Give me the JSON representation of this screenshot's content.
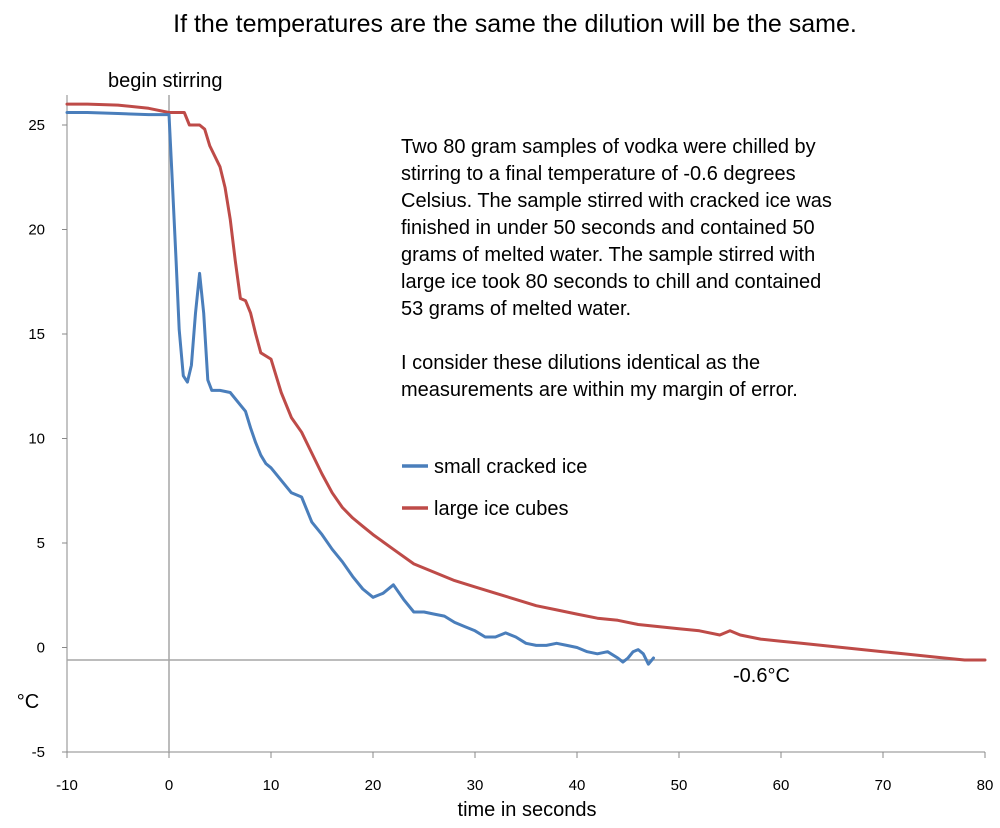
{
  "chart_data": {
    "type": "line",
    "title": "If the temperatures are the same the dilution will be the same.",
    "xlabel": "time in seconds",
    "ylabel": "°C",
    "xlim": [
      -10,
      80
    ],
    "ylim": [
      -5,
      25
    ],
    "x_ticks": [
      -10,
      0,
      10,
      20,
      30,
      40,
      50,
      60,
      70,
      80
    ],
    "y_ticks": [
      -5,
      0,
      5,
      10,
      15,
      20,
      25
    ],
    "grid": false,
    "legend_position": "center-right",
    "reference_lines": [
      {
        "axis": "x",
        "value": 0,
        "label": "begin stirring"
      },
      {
        "axis": "y",
        "value": -0.6,
        "label": "-0.6°C"
      }
    ],
    "annotation_paragraphs": [
      [
        "Two 80 gram samples of vodka were chilled by",
        "stirring to a final temperature of -0.6 degrees",
        "Celsius. The sample stirred with cracked ice was",
        "finished in under 50 seconds and contained 50",
        "grams of melted water. The sample stirred with",
        "large ice took 80 seconds to chill and contained",
        "53 grams of melted water."
      ],
      [
        "I consider these dilutions identical as the",
        "measurements are within my margin of error."
      ]
    ],
    "series": [
      {
        "name": "small cracked ice",
        "color": "#4a7ebb",
        "x": [
          -10,
          -8,
          -5,
          -2,
          0,
          0.3,
          0.7,
          1.0,
          1.4,
          1.8,
          2.2,
          2.6,
          3.0,
          3.4,
          3.8,
          4.2,
          5,
          6,
          7,
          7.5,
          8,
          8.5,
          9,
          9.5,
          10,
          11,
          12,
          13,
          14,
          15,
          16,
          17,
          18,
          19,
          20,
          21,
          22,
          23,
          24,
          25,
          26,
          27,
          28,
          29,
          30,
          31,
          32,
          33,
          34,
          35,
          36,
          37,
          38,
          39,
          40,
          41,
          42,
          43,
          44,
          44.5,
          45,
          45.5,
          46,
          46.5,
          47,
          47.5
        ],
        "values": [
          25.6,
          25.6,
          25.55,
          25.5,
          25.5,
          22.5,
          18.5,
          15.2,
          13.0,
          12.7,
          13.5,
          16.0,
          17.9,
          16.0,
          12.8,
          12.3,
          12.3,
          12.2,
          11.6,
          11.3,
          10.5,
          9.8,
          9.2,
          8.8,
          8.6,
          8.0,
          7.4,
          7.2,
          6.0,
          5.4,
          4.7,
          4.1,
          3.4,
          2.8,
          2.4,
          2.6,
          3.0,
          2.3,
          1.7,
          1.7,
          1.6,
          1.5,
          1.2,
          1.0,
          0.8,
          0.5,
          0.5,
          0.7,
          0.5,
          0.2,
          0.1,
          0.1,
          0.2,
          0.1,
          0.0,
          -0.2,
          -0.3,
          -0.2,
          -0.5,
          -0.7,
          -0.5,
          -0.2,
          -0.1,
          -0.3,
          -0.8,
          -0.5
        ]
      },
      {
        "name": "large ice cubes",
        "color": "#be4b48",
        "x": [
          -10,
          -8,
          -5,
          -2,
          0,
          1.5,
          2,
          3,
          3.5,
          4,
          5,
          5.5,
          6,
          6.5,
          7,
          7.5,
          8,
          8.5,
          9,
          10,
          11,
          12,
          13,
          14,
          15,
          16,
          17,
          18,
          19,
          20,
          22,
          24,
          26,
          28,
          30,
          32,
          34,
          36,
          38,
          40,
          42,
          44,
          46,
          48,
          50,
          52,
          54,
          55,
          56,
          58,
          60,
          62,
          64,
          66,
          68,
          70,
          72,
          74,
          76,
          78,
          80
        ],
        "values": [
          26.0,
          26.0,
          25.95,
          25.8,
          25.6,
          25.6,
          25.0,
          25.0,
          24.8,
          24.0,
          23.0,
          22.0,
          20.5,
          18.5,
          16.7,
          16.6,
          16.0,
          15.0,
          14.1,
          13.8,
          12.2,
          11.0,
          10.3,
          9.3,
          8.3,
          7.4,
          6.7,
          6.2,
          5.8,
          5.4,
          4.7,
          4.0,
          3.6,
          3.2,
          2.9,
          2.6,
          2.3,
          2.0,
          1.8,
          1.6,
          1.4,
          1.3,
          1.1,
          1.0,
          0.9,
          0.8,
          0.6,
          0.8,
          0.6,
          0.4,
          0.3,
          0.2,
          0.1,
          0.0,
          -0.1,
          -0.2,
          -0.3,
          -0.4,
          -0.5,
          -0.6,
          -0.6
        ]
      }
    ]
  }
}
